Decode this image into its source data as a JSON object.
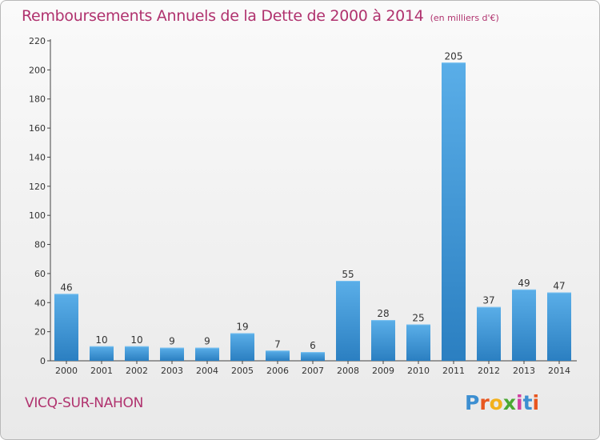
{
  "title": "Remboursements Annuels de la Dette de 2000 à 2014",
  "unit_note": "(en milliers d'€)",
  "commune": "VICQ-SUR-NAHON",
  "logo": {
    "text": "Proxiti",
    "letters": [
      "P",
      "r",
      "o",
      "x",
      "i",
      "t",
      "i"
    ],
    "colors": [
      "#3d8fd1",
      "#e8561f",
      "#f2b11d",
      "#4aa832",
      "#d13fa0",
      "#3d8fd1",
      "#e8561f"
    ]
  },
  "colors": {
    "title": "#b0326e",
    "bar_light": "#5aaee8",
    "bar_dark": "#2b7fc1",
    "axis": "#444444"
  },
  "chart_data": {
    "type": "bar",
    "title": "Remboursements Annuels de la Dette de 2000 à 2014",
    "subtitle": "(en milliers d'€)",
    "categories": [
      "2000",
      "2001",
      "2002",
      "2003",
      "2004",
      "2005",
      "2006",
      "2007",
      "2008",
      "2009",
      "2010",
      "2011",
      "2012",
      "2013",
      "2014"
    ],
    "values": [
      46,
      10,
      10,
      9,
      9,
      19,
      7,
      6,
      55,
      28,
      25,
      205,
      37,
      49,
      47
    ],
    "ylim": [
      0,
      220
    ],
    "yticks": [
      0,
      20,
      40,
      60,
      80,
      100,
      120,
      140,
      160,
      180,
      200,
      220
    ],
    "grid": false,
    "xlabel": "",
    "ylabel": ""
  }
}
